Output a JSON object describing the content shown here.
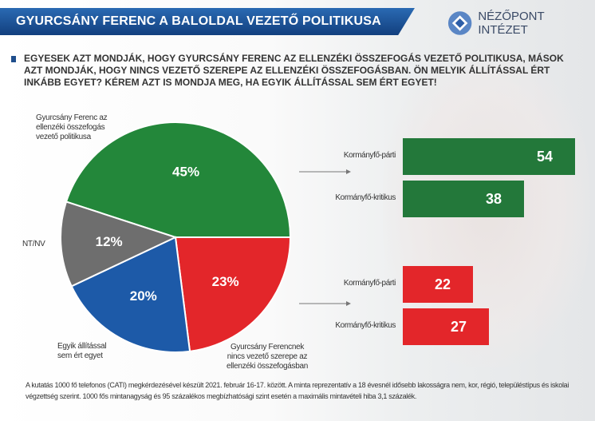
{
  "header": {
    "title": "GYURCSÁNY FERENC A BALOLDAL VEZETŐ POLITIKUSA",
    "logo_text": "NÉZŐPONT INTÉZET"
  },
  "question": "EGYESEK AZT MONDJÁK, HOGY GYURCSÁNY FERENC AZ ELLENZÉKI ÖSSZEFOGÁS VEZETŐ POLITIKUSA, MÁSOK AZT MONDJÁK, HOGY NINCS VEZETŐ SZEREPE AZ ELLENZÉKI ÖSSZEFOGÁSBAN. ÖN MELYIK ÁLLÍTÁSSAL ÉRT INKÁBB EGYET? KÉREM AZT IS MONDJA MEG, HA EGYIK ÁLLÍTÁSSAL SEM ÉRT EGYET!",
  "chart_data": [
    {
      "type": "pie",
      "slices": [
        {
          "label": "Gyurcsány Ferenc az ellenzéki összefogás vezető politikusa",
          "value": 45,
          "display": "45%",
          "color": "#23873a"
        },
        {
          "label": "Gyurcsány Ferencnek nincs vezető szerepe az ellenzéki összefogásban",
          "value": 23,
          "display": "23%",
          "color": "#e3262a"
        },
        {
          "label": "Egyik állítással sem ért egyet",
          "value": 20,
          "display": "20%",
          "color": "#1d5aa8"
        },
        {
          "label": "NT/NV",
          "value": 12,
          "display": "12%",
          "color": "#6e6e6e"
        }
      ]
    },
    {
      "type": "bar",
      "orientation": "horizontal",
      "title": "Gyurcsány Ferenc az ellenzéki összefogás vezető politikusa",
      "categories": [
        "Kormányfő-párti",
        "Kormányfő-kritikus"
      ],
      "values": [
        54,
        38
      ],
      "color": "#23783a"
    },
    {
      "type": "bar",
      "orientation": "horizontal",
      "title": "Gyurcsány Ferencnek nincs vezető szerepe az ellenzéki összefogásban",
      "categories": [
        "Kormányfő-párti",
        "Kormányfő-kritikus"
      ],
      "values": [
        22,
        27
      ],
      "color": "#e3262a"
    }
  ],
  "footnote": "A kutatás 1000 fő telefonos (CATI) megkérdezésével készült 2021. február 16-17. között. A minta reprezentatív a 18 évesnél idősebb lakosságra nem, kor, régió, településtípus és iskolai végzettség szerint. 1000 fős mintanagyság és 95 százalékos megbízhatósági szint esetén a maximális mintavételi hiba 3,1 százalék."
}
